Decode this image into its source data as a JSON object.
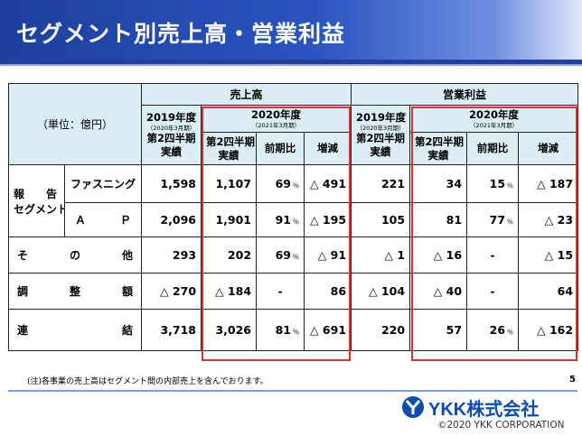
{
  "header": {
    "title": "セグメント別売上高・営業利益"
  },
  "table": {
    "unit": "（単位：億円）",
    "sales_group": "売上高",
    "profit_group": "営業利益",
    "fy2019": "2019年度",
    "fy2019_sub": "（2020年3月期）",
    "fy2020": "2020年度",
    "fy2020_sub": "（2021年3月期）",
    "q2_actual_1": "第2四半期",
    "q2_actual_2": "実績",
    "yoy_ratio": "前期比",
    "change": "増減",
    "pct_sign": "％",
    "reported_segment_1": "報　告",
    "reported_segment_2": "セグメント",
    "rows": [
      {
        "label": "ファスニング",
        "s19": "1,598",
        "s20": "1,107",
        "s_ratio": "69",
        "s_diff": "△ 491",
        "p19": "221",
        "p20": "34",
        "p_ratio": "15",
        "p_diff": "△ 187"
      },
      {
        "label_a": "Ａ",
        "label_b": "Ｐ",
        "s19": "2,096",
        "s20": "1,901",
        "s_ratio": "91",
        "s_diff": "△ 195",
        "p19": "105",
        "p20": "81",
        "p_ratio": "77",
        "p_diff": "△ 23"
      },
      {
        "label_a": "そ",
        "label_b": "の",
        "label_c": "他",
        "s19": "293",
        "s20": "202",
        "s_ratio": "69",
        "s_diff": "△ 91",
        "p19": "△ 1",
        "p20": "△ 16",
        "p_ratio": "-",
        "p_diff": "△ 15"
      },
      {
        "label_a": "調",
        "label_b": "整",
        "label_c": "額",
        "s19": "△ 270",
        "s20": "△ 184",
        "s_ratio": "-",
        "s_diff": "86",
        "p19": "△ 104",
        "p20": "△ 40",
        "p_ratio": "-",
        "p_diff": "64"
      },
      {
        "label_a": "連",
        "label_b": "結",
        "s19": "3,718",
        "s20": "3,026",
        "s_ratio": "81",
        "s_diff": "△ 691",
        "p19": "220",
        "p20": "57",
        "p_ratio": "26",
        "p_diff": "△ 162"
      }
    ]
  },
  "footer": {
    "note": "(注)各事業の売上高はセグメント間の内部売上を含んでおります。",
    "page": "5",
    "logo_text": "YKK株式会社",
    "copyright": "©2020 YKK CORPORATION"
  },
  "colors": {
    "header": "#1e3f9c",
    "table_header_bg": "#daeef3",
    "highlight": "#e0302a",
    "logo": "#0b4db5"
  }
}
